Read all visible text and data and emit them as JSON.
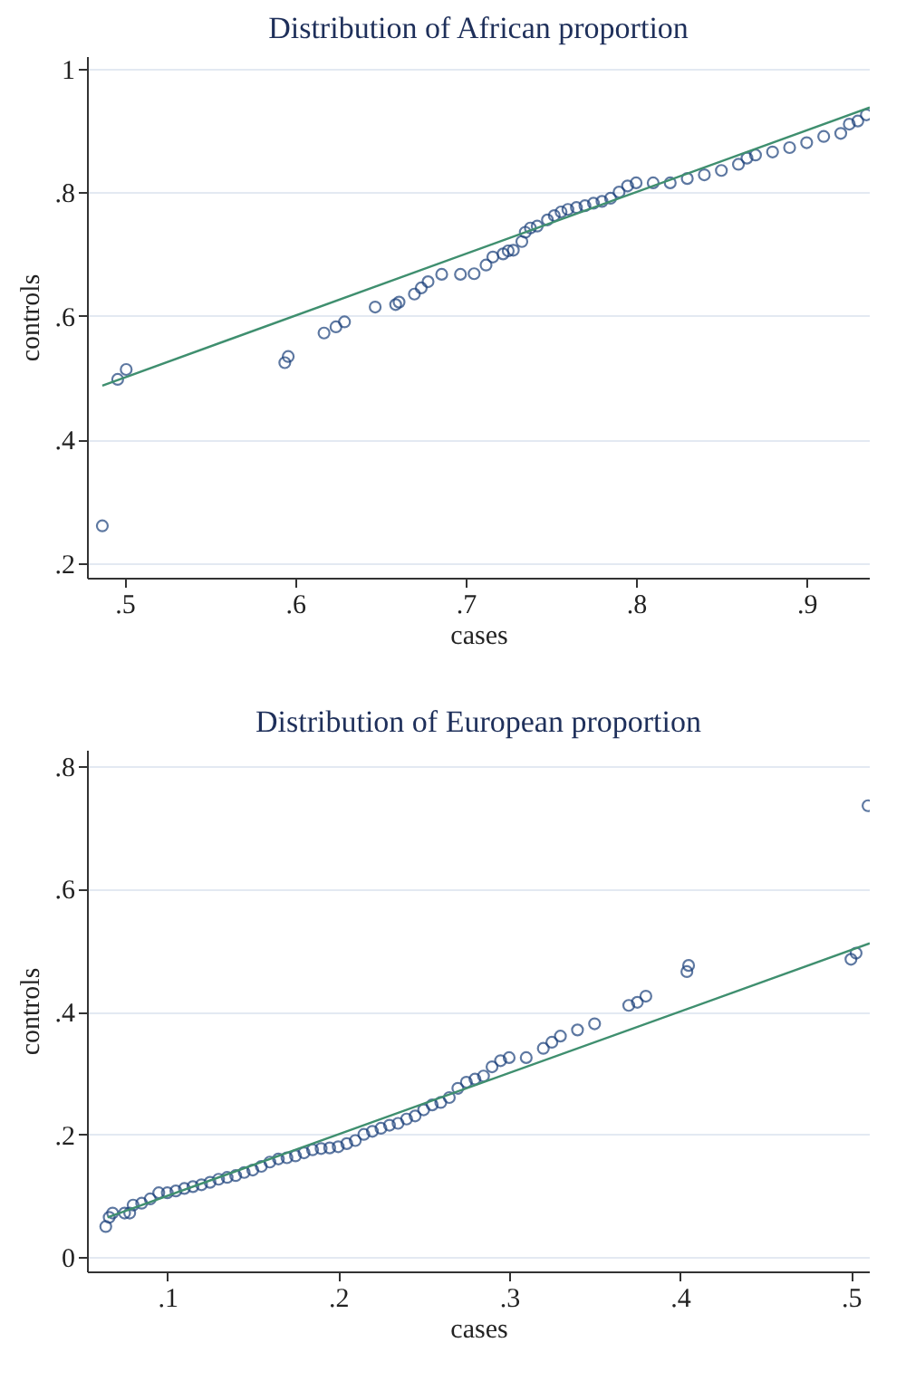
{
  "chart_data": [
    {
      "type": "scatter",
      "title": "Distribution of African proportion",
      "xlabel": "cases",
      "ylabel": "controls",
      "grid": "y",
      "xlim": [
        0.478,
        0.937
      ],
      "ylim": [
        0.176,
        1.02
      ],
      "xticks": [
        {
          "value": 0.5,
          "label": ".5"
        },
        {
          "value": 0.6,
          "label": ".6"
        },
        {
          "value": 0.7,
          "label": ".7"
        },
        {
          "value": 0.8,
          "label": ".8"
        },
        {
          "value": 0.9,
          "label": ".9"
        }
      ],
      "yticks": [
        {
          "value": 0.2,
          "label": ".2"
        },
        {
          "value": 0.4,
          "label": ".4"
        },
        {
          "value": 0.6,
          "label": ".6"
        },
        {
          "value": 0.8,
          "label": ".8"
        },
        1
      ],
      "series": [
        {
          "marker": "circle",
          "color": "#1a3f7a",
          "x": [
            0.487,
            0.496,
            0.501,
            0.594,
            0.596,
            0.617,
            0.624,
            0.629,
            0.647,
            0.659,
            0.661,
            0.67,
            0.674,
            0.678,
            0.686,
            0.697,
            0.705,
            0.712,
            0.716,
            0.722,
            0.725,
            0.728,
            0.733,
            0.735,
            0.738,
            0.742,
            0.748,
            0.752,
            0.756,
            0.76,
            0.765,
            0.77,
            0.775,
            0.78,
            0.785,
            0.79,
            0.795,
            0.8,
            0.81,
            0.82,
            0.83,
            0.84,
            0.85,
            0.86,
            0.865,
            0.87,
            0.88,
            0.89,
            0.9,
            0.91,
            0.92,
            0.925,
            0.93,
            0.935
          ],
          "values": [
            0.26,
            0.497,
            0.513,
            0.524,
            0.534,
            0.572,
            0.582,
            0.59,
            0.614,
            0.618,
            0.622,
            0.635,
            0.645,
            0.655,
            0.667,
            0.667,
            0.668,
            0.682,
            0.695,
            0.7,
            0.705,
            0.706,
            0.72,
            0.735,
            0.742,
            0.745,
            0.755,
            0.762,
            0.768,
            0.772,
            0.775,
            0.778,
            0.782,
            0.785,
            0.79,
            0.8,
            0.81,
            0.815,
            0.815,
            0.815,
            0.822,
            0.828,
            0.835,
            0.845,
            0.855,
            0.86,
            0.865,
            0.872,
            0.88,
            0.89,
            0.895,
            0.91,
            0.915,
            0.925
          ]
        },
        {
          "type": "line",
          "marker": "none",
          "color": "#3f8f6f",
          "x": [
            0.487,
            0.937
          ],
          "values": [
            0.487,
            0.937
          ]
        }
      ]
    },
    {
      "type": "scatter",
      "title": "Distribution of European proportion",
      "xlabel": "cases",
      "ylabel": "controls",
      "grid": "y",
      "xlim": [
        0.053,
        0.511
      ],
      "ylim": [
        -0.023,
        0.826
      ],
      "xticks": [
        {
          "value": 0.1,
          "label": ".1"
        },
        {
          "value": 0.2,
          "label": ".2"
        },
        {
          "value": 0.3,
          "label": ".3"
        },
        {
          "value": 0.4,
          "label": ".4"
        },
        {
          "value": 0.5,
          "label": ".5"
        }
      ],
      "yticks": [
        0,
        {
          "value": 0.2,
          "label": ".2"
        },
        {
          "value": 0.4,
          "label": ".4"
        },
        {
          "value": 0.6,
          "label": ".6"
        },
        {
          "value": 0.8,
          "label": ".8"
        }
      ],
      "series": [
        {
          "marker": "circle",
          "color": "#1a3f7a",
          "x": [
            0.064,
            0.066,
            0.068,
            0.075,
            0.078,
            0.08,
            0.085,
            0.09,
            0.095,
            0.1,
            0.105,
            0.11,
            0.115,
            0.12,
            0.125,
            0.13,
            0.135,
            0.14,
            0.145,
            0.15,
            0.155,
            0.16,
            0.165,
            0.17,
            0.175,
            0.18,
            0.185,
            0.19,
            0.195,
            0.2,
            0.205,
            0.21,
            0.215,
            0.22,
            0.225,
            0.23,
            0.235,
            0.24,
            0.245,
            0.25,
            0.255,
            0.26,
            0.265,
            0.27,
            0.275,
            0.28,
            0.285,
            0.29,
            0.295,
            0.3,
            0.31,
            0.32,
            0.325,
            0.33,
            0.34,
            0.35,
            0.37,
            0.375,
            0.38,
            0.404,
            0.405,
            0.5,
            0.503,
            0.51
          ],
          "values": [
            0.05,
            0.065,
            0.072,
            0.072,
            0.072,
            0.085,
            0.088,
            0.095,
            0.105,
            0.105,
            0.108,
            0.112,
            0.115,
            0.118,
            0.122,
            0.127,
            0.13,
            0.133,
            0.138,
            0.142,
            0.148,
            0.155,
            0.16,
            0.162,
            0.165,
            0.17,
            0.175,
            0.177,
            0.178,
            0.18,
            0.185,
            0.19,
            0.2,
            0.205,
            0.21,
            0.215,
            0.218,
            0.225,
            0.23,
            0.24,
            0.248,
            0.252,
            0.26,
            0.275,
            0.285,
            0.29,
            0.295,
            0.31,
            0.32,
            0.325,
            0.325,
            0.34,
            0.35,
            0.36,
            0.37,
            0.38,
            0.41,
            0.415,
            0.425,
            0.465,
            0.475,
            0.485,
            0.495,
            0.735
          ]
        },
        {
          "type": "line",
          "marker": "none",
          "color": "#3f8f6f",
          "x": [
            0.065,
            0.511
          ],
          "values": [
            0.065,
            0.511
          ]
        }
      ]
    }
  ]
}
